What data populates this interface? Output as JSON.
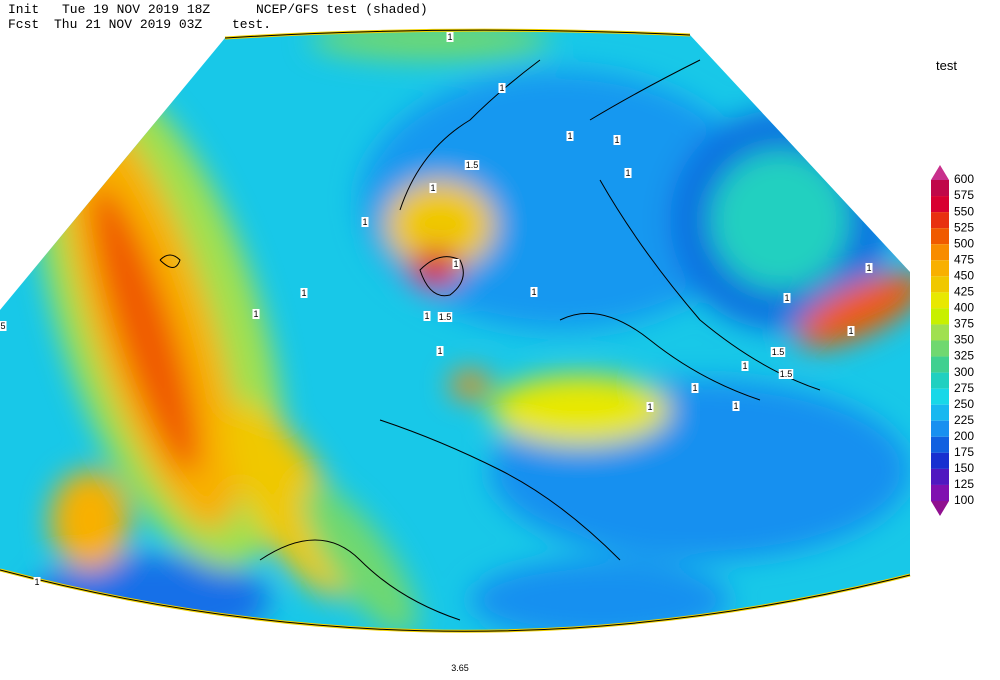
{
  "header": {
    "init_label": "Init",
    "init_time": "Tue 19 NOV 2019 18Z",
    "model": "NCEP/GFS test (shaded)",
    "fcst_label": "Fcst",
    "fcst_time": "Thu 21 NOV 2019 03Z",
    "field": "test."
  },
  "colorbar": {
    "title": "test",
    "levels": [
      600,
      575,
      550,
      525,
      500,
      475,
      450,
      425,
      400,
      375,
      350,
      325,
      300,
      275,
      250,
      225,
      200,
      175,
      150,
      125,
      100
    ],
    "colors": [
      "#c8308c",
      "#c00848",
      "#d80030",
      "#e83010",
      "#f05a00",
      "#f88c00",
      "#f8b000",
      "#f0c800",
      "#e8e800",
      "#c8f000",
      "#a0e050",
      "#70d870",
      "#40d090",
      "#20d0c0",
      "#18d8e8",
      "#18b8f0",
      "#1890f0",
      "#1060e0",
      "#1830d0",
      "#5018c0",
      "#8010b0",
      "#901090"
    ]
  },
  "contour_labels": [
    "1",
    "1",
    "1",
    "1",
    "1",
    "1.5",
    "1",
    "1",
    "1",
    "1",
    "1",
    "1",
    "1.5",
    "1",
    "1",
    "1",
    "1",
    "1",
    "1.5",
    "1.5",
    "1",
    "1",
    "1",
    "1",
    "1",
    "3.65",
    "5"
  ]
}
